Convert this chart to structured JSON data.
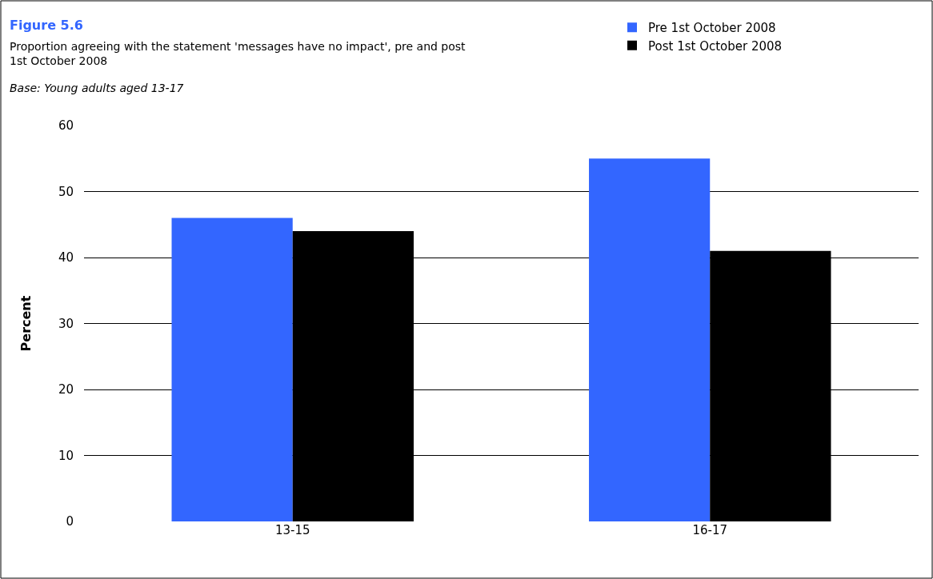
{
  "chart_data": {
    "type": "bar",
    "title": "Figure 5.6",
    "subtitle": "Proportion agreeing with the statement 'messages have no impact', pre and post 1st October 2008",
    "annotations": [
      "Base: Young adults aged 13-17"
    ],
    "ylabel": "Percent",
    "categories": [
      "13-15",
      "16-17"
    ],
    "series": [
      {
        "name": "Pre 1st October 2008",
        "color": "#3366ff",
        "values": [
          46,
          55
        ]
      },
      {
        "name": "Post 1st October 2008",
        "color": "#000000",
        "values": [
          44,
          41
        ]
      }
    ],
    "ylim": [
      0,
      60
    ],
    "yticks": [
      0,
      10,
      20,
      30,
      40,
      50,
      60
    ],
    "grid": "y",
    "legend": "top right"
  }
}
